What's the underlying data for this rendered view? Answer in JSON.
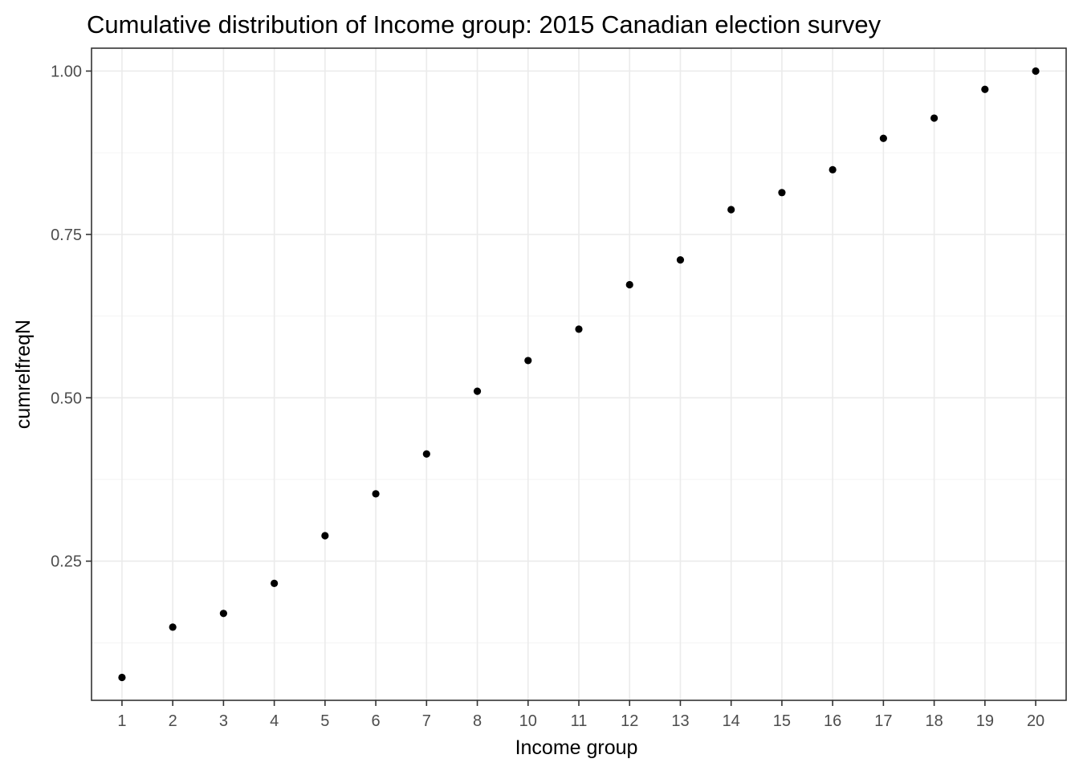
{
  "chart_data": {
    "type": "scatter",
    "title": "Cumulative distribution of Income group: 2015 Canadian election survey",
    "xlabel": "Income group",
    "ylabel": "cumrelfreqN",
    "categories": [
      "1",
      "2",
      "3",
      "4",
      "5",
      "6",
      "7",
      "8",
      "10",
      "11",
      "12",
      "13",
      "14",
      "15",
      "16",
      "17",
      "18",
      "19",
      "20"
    ],
    "values": [
      0.072,
      0.149,
      0.17,
      0.216,
      0.289,
      0.353,
      0.414,
      0.51,
      0.557,
      0.605,
      0.673,
      0.711,
      0.788,
      0.814,
      0.849,
      0.897,
      0.928,
      0.972,
      1.0
    ],
    "ylim": [
      0.037,
      1.035
    ],
    "y_ticks": [
      0.25,
      0.5,
      0.75,
      1.0
    ],
    "y_tick_labels": [
      "0.25",
      "0.50",
      "0.75",
      "1.00"
    ],
    "grid": true,
    "legend": "none",
    "colors": {
      "point": "#000000",
      "grid": "#ebebeb",
      "border": "#333333",
      "tick_text": "#4d4d4d"
    }
  }
}
